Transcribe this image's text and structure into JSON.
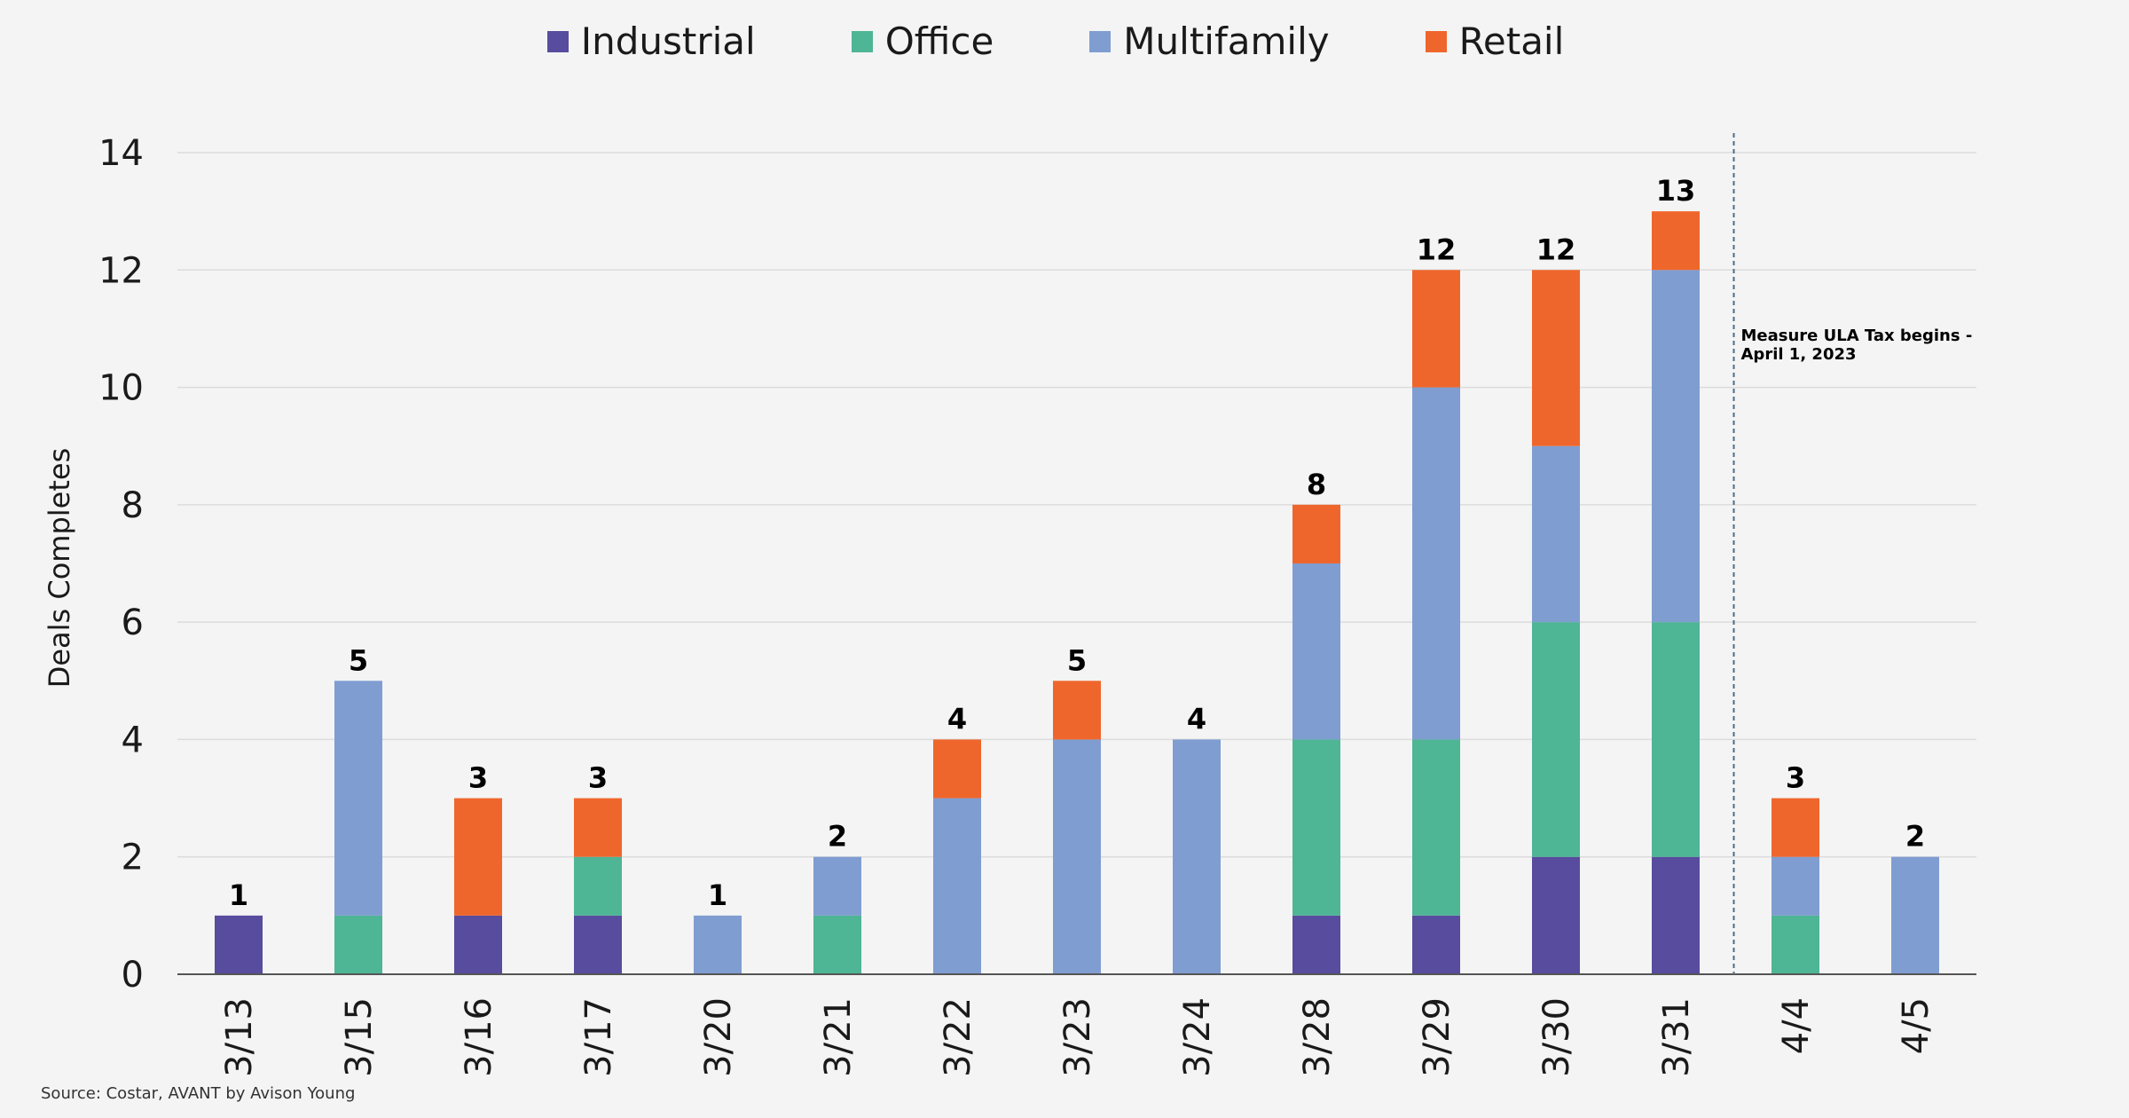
{
  "colors": {
    "Industrial": "#574c9e",
    "Office": "#4eb595",
    "Multifamily": "#7f9dd1",
    "Retail": "#ef662c",
    "background": "#f4f4f4"
  },
  "legend": [
    {
      "name": "Industrial",
      "color": "#574c9e"
    },
    {
      "name": "Office",
      "color": "#4eb595"
    },
    {
      "name": "Multifamily",
      "color": "#7f9dd1"
    },
    {
      "name": "Retail",
      "color": "#ef662c"
    }
  ],
  "source": "Source: Costar, AVANT by Avison Young",
  "chart_data": {
    "type": "bar",
    "stacked": true,
    "categories": [
      "3/13",
      "3/15",
      "3/16",
      "3/17",
      "3/20",
      "3/21",
      "3/22",
      "3/23",
      "3/24",
      "3/28",
      "3/29",
      "3/30",
      "3/31",
      "4/4",
      "4/5"
    ],
    "series": [
      {
        "name": "Industrial",
        "values": [
          1,
          0,
          1,
          1,
          0,
          0,
          0,
          0,
          0,
          1,
          1,
          2,
          2,
          0,
          0
        ]
      },
      {
        "name": "Office",
        "values": [
          0,
          1,
          0,
          1,
          0,
          1,
          0,
          0,
          0,
          3,
          3,
          4,
          4,
          1,
          0
        ]
      },
      {
        "name": "Multifamily",
        "values": [
          0,
          4,
          0,
          0,
          1,
          1,
          3,
          4,
          4,
          3,
          6,
          3,
          6,
          1,
          2
        ]
      },
      {
        "name": "Retail",
        "values": [
          0,
          0,
          2,
          1,
          0,
          0,
          1,
          1,
          0,
          1,
          2,
          3,
          1,
          1,
          0
        ]
      }
    ],
    "totals": [
      1,
      5,
      3,
      3,
      1,
      2,
      4,
      5,
      4,
      8,
      12,
      12,
      13,
      3,
      2
    ],
    "ylabel": "Deals Completes",
    "xlabel": "",
    "ylim": [
      0,
      14
    ],
    "yticks": [
      0,
      2,
      4,
      6,
      8,
      10,
      12,
      14
    ],
    "grid": true,
    "legend_position": "top",
    "annotation": {
      "after_category": "3/31",
      "lines": [
        "Measure ULA Tax begins -",
        "April 1, 2023"
      ]
    }
  }
}
